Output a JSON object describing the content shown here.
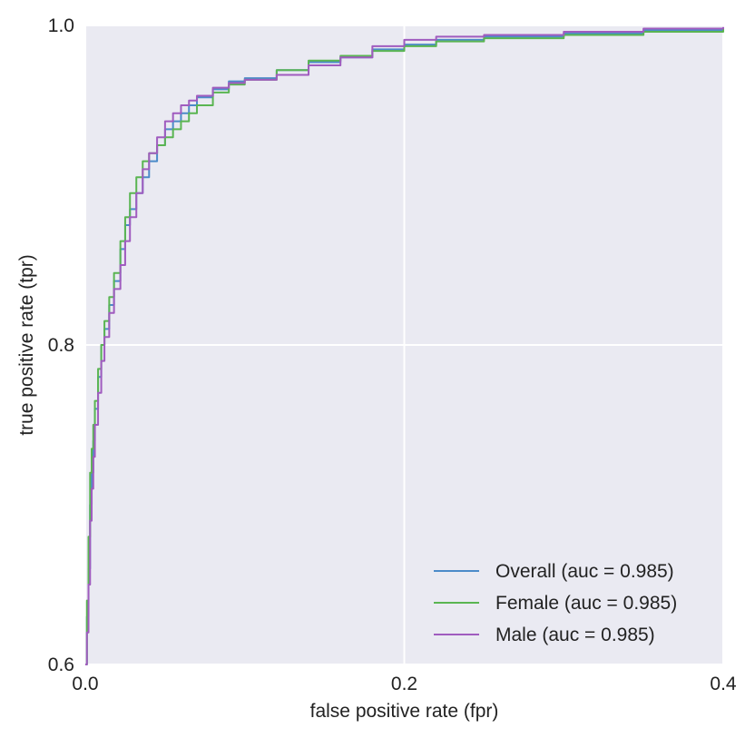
{
  "chart_data": {
    "type": "line",
    "title": "",
    "xlabel": "false positive rate (fpr)",
    "ylabel": "true positive rate (tpr)",
    "xlim": [
      0.0,
      0.4
    ],
    "ylim": [
      0.6,
      1.0
    ],
    "xticks": [
      0.0,
      0.2,
      0.4
    ],
    "xtick_labels": [
      "0.0",
      "0.2",
      "0.4"
    ],
    "yticks": [
      0.6,
      0.8,
      1.0
    ],
    "ytick_labels": [
      "0.6",
      "0.8",
      "1.0"
    ],
    "grid": true,
    "legend_position": "lower-right",
    "background_color": "#eaeaf2",
    "series": [
      {
        "name": "Overall (auc = 0.985)",
        "color": "#4c8bc9",
        "x": [
          0.0,
          0.001,
          0.002,
          0.003,
          0.004,
          0.005,
          0.006,
          0.008,
          0.01,
          0.012,
          0.015,
          0.018,
          0.022,
          0.025,
          0.028,
          0.032,
          0.036,
          0.04,
          0.045,
          0.05,
          0.055,
          0.06,
          0.065,
          0.07,
          0.08,
          0.09,
          0.1,
          0.12,
          0.14,
          0.16,
          0.18,
          0.2,
          0.22,
          0.25,
          0.3,
          0.35,
          0.4
        ],
        "y": [
          0.6,
          0.63,
          0.66,
          0.7,
          0.72,
          0.74,
          0.76,
          0.78,
          0.8,
          0.81,
          0.825,
          0.84,
          0.86,
          0.875,
          0.885,
          0.895,
          0.905,
          0.915,
          0.925,
          0.935,
          0.94,
          0.945,
          0.95,
          0.955,
          0.96,
          0.965,
          0.967,
          0.972,
          0.977,
          0.98,
          0.985,
          0.988,
          0.991,
          0.993,
          0.995,
          0.997,
          0.998
        ]
      },
      {
        "name": "Female (auc = 0.985)",
        "color": "#5ab552",
        "x": [
          0.0,
          0.001,
          0.002,
          0.003,
          0.004,
          0.005,
          0.006,
          0.008,
          0.01,
          0.012,
          0.015,
          0.018,
          0.022,
          0.025,
          0.028,
          0.032,
          0.036,
          0.04,
          0.045,
          0.05,
          0.055,
          0.06,
          0.065,
          0.07,
          0.08,
          0.09,
          0.1,
          0.12,
          0.14,
          0.16,
          0.18,
          0.2,
          0.22,
          0.25,
          0.3,
          0.35,
          0.4
        ],
        "y": [
          0.6,
          0.64,
          0.68,
          0.72,
          0.735,
          0.75,
          0.765,
          0.785,
          0.8,
          0.815,
          0.83,
          0.845,
          0.865,
          0.88,
          0.895,
          0.905,
          0.915,
          0.92,
          0.925,
          0.93,
          0.935,
          0.94,
          0.945,
          0.95,
          0.958,
          0.963,
          0.966,
          0.972,
          0.978,
          0.981,
          0.984,
          0.987,
          0.99,
          0.992,
          0.994,
          0.996,
          0.998
        ]
      },
      {
        "name": "Male (auc = 0.985)",
        "color": "#a05cbf",
        "x": [
          0.0,
          0.001,
          0.002,
          0.003,
          0.004,
          0.005,
          0.006,
          0.008,
          0.01,
          0.012,
          0.015,
          0.018,
          0.022,
          0.025,
          0.028,
          0.032,
          0.036,
          0.04,
          0.045,
          0.05,
          0.055,
          0.06,
          0.065,
          0.07,
          0.08,
          0.09,
          0.1,
          0.12,
          0.14,
          0.16,
          0.18,
          0.2,
          0.22,
          0.25,
          0.3,
          0.35,
          0.4
        ],
        "y": [
          0.6,
          0.62,
          0.65,
          0.69,
          0.71,
          0.73,
          0.75,
          0.77,
          0.79,
          0.805,
          0.82,
          0.835,
          0.85,
          0.865,
          0.88,
          0.895,
          0.91,
          0.92,
          0.93,
          0.94,
          0.945,
          0.95,
          0.953,
          0.956,
          0.961,
          0.964,
          0.966,
          0.969,
          0.975,
          0.98,
          0.987,
          0.991,
          0.993,
          0.994,
          0.996,
          0.998,
          0.999
        ]
      }
    ]
  }
}
